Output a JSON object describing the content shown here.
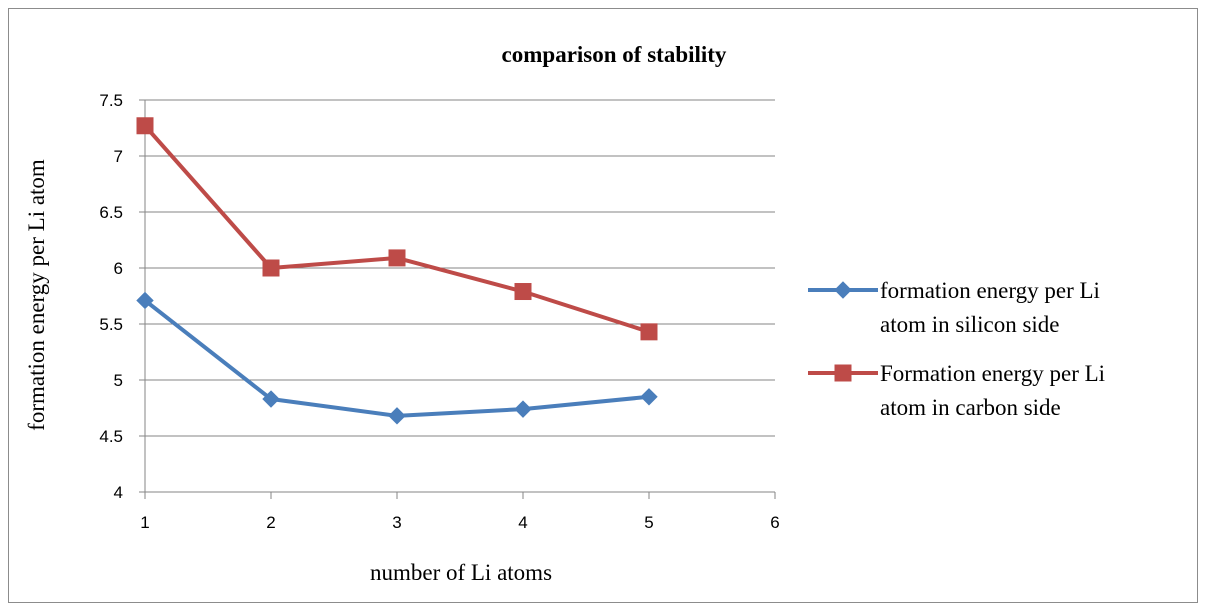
{
  "chart_data": {
    "type": "line",
    "title": "comparison of stability",
    "xlabel": "number of Li atoms",
    "ylabel": "formation energy per Li atom",
    "xlim": [
      1,
      6
    ],
    "ylim": [
      4,
      7.5
    ],
    "x_ticks": [
      "1",
      "2",
      "3",
      "4",
      "5",
      "6"
    ],
    "y_ticks": [
      "4",
      "4.5",
      "5",
      "5.5",
      "6",
      "6.5",
      "7",
      "7.5"
    ],
    "grid": "horizontal",
    "legend_position": "right",
    "series": [
      {
        "name": "formation energy per Li atom in silicon side",
        "legend_lines": [
          "formation energy per Li",
          "atom in silicon side"
        ],
        "marker": "diamond",
        "color": "#4a7ebb",
        "x": [
          1,
          2,
          3,
          4,
          5
        ],
        "y": [
          5.71,
          4.83,
          4.68,
          4.74,
          4.85
        ]
      },
      {
        "name": "Formation energy per Li atom in carbon side",
        "legend_lines": [
          "Formation energy per Li",
          "atom in carbon side"
        ],
        "marker": "square",
        "color": "#be4b48",
        "x": [
          1,
          2,
          3,
          4,
          5
        ],
        "y": [
          7.27,
          6.0,
          6.09,
          5.79,
          5.43
        ]
      }
    ]
  }
}
